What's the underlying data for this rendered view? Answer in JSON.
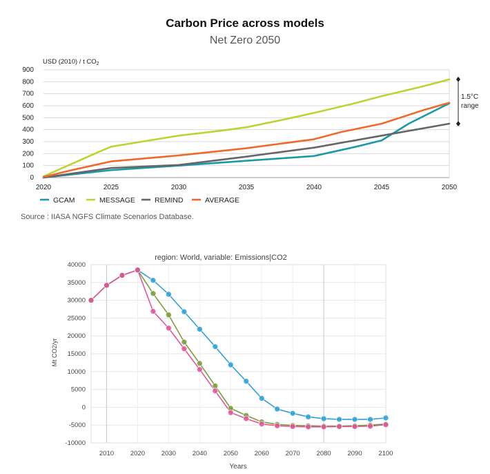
{
  "chart_data": [
    {
      "type": "line",
      "title": "Carbon Price across models",
      "subtitle": "Net Zero 2050",
      "ylabel": "USD (2010) / t CO",
      "ylabel_sub": "2",
      "xlim": [
        2020,
        2050
      ],
      "ylim": [
        0,
        900
      ],
      "x_ticks": [
        2020,
        2025,
        2030,
        2035,
        2040,
        2045,
        2050
      ],
      "y_ticks": [
        0,
        100,
        200,
        300,
        400,
        500,
        600,
        700,
        800,
        900
      ],
      "grid": true,
      "legend_position": "bottom",
      "annotation": {
        "line1": "1.5°C",
        "line2": "range",
        "from": 820,
        "to": 450
      },
      "source": "Source : IIASA NGFS Climate Scenarios Database.",
      "series": [
        {
          "name": "GCAM",
          "color": "#1a9aa6",
          "x": [
            2020,
            2025,
            2030,
            2035,
            2040,
            2043,
            2045,
            2047,
            2050
          ],
          "y": [
            0,
            62,
            100,
            140,
            180,
            255,
            310,
            450,
            620
          ]
        },
        {
          "name": "MESSAGE",
          "color": "#bfd230",
          "x": [
            2020,
            2022,
            2024,
            2025,
            2027,
            2030,
            2033,
            2035,
            2038,
            2040,
            2043,
            2045,
            2048,
            2050
          ],
          "y": [
            10,
            110,
            210,
            258,
            295,
            350,
            390,
            420,
            490,
            540,
            620,
            680,
            760,
            820
          ]
        },
        {
          "name": "REMIND",
          "color": "#666666",
          "x": [
            2020,
            2025,
            2030,
            2035,
            2040,
            2045,
            2050
          ],
          "y": [
            0,
            80,
            105,
            175,
            250,
            350,
            450
          ]
        },
        {
          "name": "AVERAGE",
          "color": "#ee6a2c",
          "x": [
            2020,
            2022,
            2025,
            2030,
            2035,
            2040,
            2042,
            2045,
            2048,
            2050
          ],
          "y": [
            5,
            60,
            135,
            185,
            245,
            320,
            380,
            450,
            560,
            625
          ]
        }
      ]
    },
    {
      "type": "line",
      "title": "region: World, variable: Emissions|CO2",
      "xlabel": "Years",
      "ylabel": "Mt CO2/yr",
      "xlim": [
        2005,
        2100
      ],
      "ylim": [
        -10000,
        40000
      ],
      "x_ticks": [
        2010,
        2020,
        2030,
        2040,
        2050,
        2060,
        2070,
        2080,
        2090,
        2100
      ],
      "y_ticks": [
        -10000,
        -5000,
        0,
        5000,
        10000,
        15000,
        20000,
        25000,
        30000,
        35000,
        40000
      ],
      "grid": true,
      "series": [
        {
          "color": "#2e9fd8",
          "x": [
            2005,
            2010,
            2015,
            2020,
            2025,
            2030,
            2035,
            2040,
            2045,
            2050,
            2055,
            2060,
            2065,
            2070,
            2075,
            2080,
            2085,
            2090,
            2095,
            2100
          ],
          "y": [
            30000,
            34200,
            37000,
            38500,
            35600,
            31700,
            26800,
            21900,
            17000,
            11900,
            7300,
            2500,
            -500,
            -1700,
            -2700,
            -3200,
            -3400,
            -3400,
            -3400,
            -3000
          ]
        },
        {
          "color": "#7a9b3b",
          "x": [
            2005,
            2010,
            2015,
            2020,
            2025,
            2030,
            2035,
            2040,
            2045,
            2050,
            2055,
            2060,
            2065,
            2070,
            2075,
            2080,
            2085,
            2090,
            2095,
            2100
          ],
          "y": [
            30000,
            34200,
            37000,
            38500,
            31900,
            25900,
            18300,
            12300,
            6000,
            -300,
            -2300,
            -4100,
            -4800,
            -5100,
            -5200,
            -5300,
            -5300,
            -5200,
            -5000,
            -4700
          ]
        },
        {
          "color": "#e0559a",
          "x": [
            2005,
            2010,
            2015,
            2020,
            2025,
            2030,
            2035,
            2040,
            2045,
            2050,
            2055,
            2060,
            2065,
            2070,
            2075,
            2080,
            2085,
            2090,
            2095,
            2100
          ],
          "y": [
            30000,
            34200,
            37000,
            38500,
            26900,
            22200,
            16400,
            10600,
            4600,
            -1500,
            -3200,
            -4700,
            -5200,
            -5400,
            -5500,
            -5500,
            -5400,
            -5400,
            -5300,
            -4900
          ]
        }
      ]
    }
  ]
}
